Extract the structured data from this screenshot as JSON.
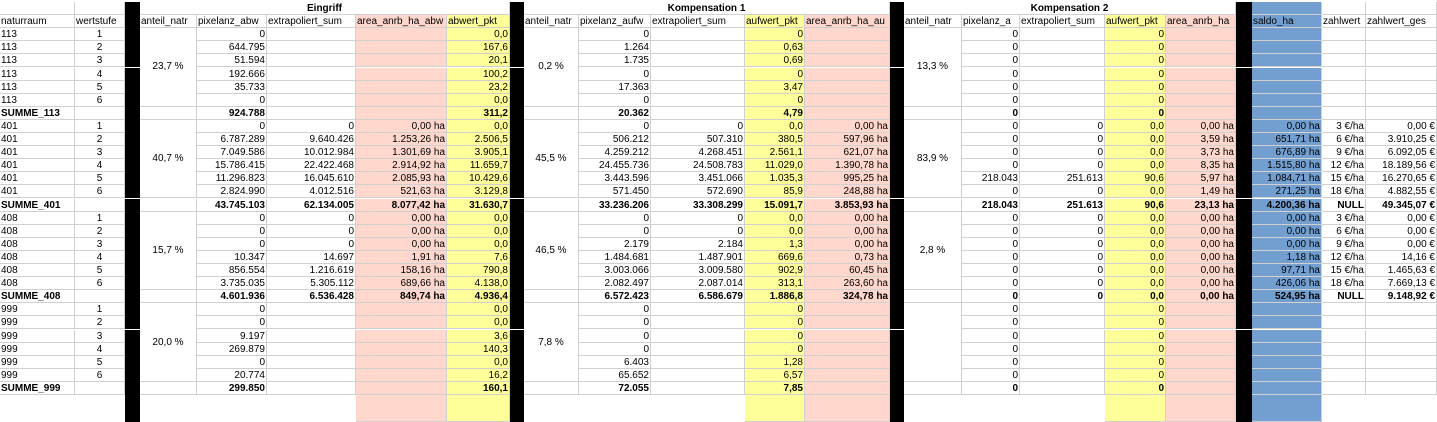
{
  "groups": [
    "Eingriff",
    "Kompensation 1",
    "Kompensation 2"
  ],
  "headers": [
    "naturraum",
    "wertstufe",
    "",
    "anteil_natr",
    "pixelanz_abw",
    "extrapoliert_sum",
    "area_anrb_ha_abw",
    "abwert_pkt",
    "",
    "anteil_natr",
    "pixelanz_aufw",
    "extrapoliert_sum",
    "aufwert_pkt",
    "area_anrb_ha_au",
    "",
    "anteil_natr",
    "pixelanz_a",
    "extrapoliert_sum",
    "aufwert_pkt",
    "area_anrb_ha",
    "",
    "saldo_ha",
    "zahlwert",
    "zahlwert_ges"
  ],
  "blocks": [
    {
      "anteil": [
        "23,7 %",
        "0,2 %",
        "13,3 %"
      ],
      "rows": [
        [
          "113",
          "1",
          "",
          "",
          "0",
          "",
          "",
          "0,0",
          "",
          "",
          "0",
          "",
          "0",
          "",
          "",
          "",
          "0",
          "",
          "0",
          "",
          "",
          "",
          "",
          ""
        ],
        [
          "113",
          "2",
          "",
          "",
          "644.795",
          "",
          "",
          "167,6",
          "",
          "",
          "1.264",
          "",
          "0,63",
          "",
          "",
          "",
          "0",
          "",
          "0",
          "",
          "",
          "",
          "",
          ""
        ],
        [
          "113",
          "3",
          "",
          "",
          "51.594",
          "",
          "",
          "20,1",
          "",
          "",
          "1.735",
          "",
          "0,69",
          "",
          "",
          "",
          "0",
          "",
          "0",
          "",
          "",
          "",
          "",
          ""
        ],
        [
          "113",
          "4",
          "",
          "",
          "192.666",
          "",
          "",
          "100,2",
          "",
          "",
          "0",
          "",
          "0",
          "",
          "",
          "",
          "0",
          "",
          "0",
          "",
          "",
          "",
          "",
          ""
        ],
        [
          "113",
          "5",
          "",
          "",
          "35.733",
          "",
          "",
          "23,2",
          "",
          "",
          "17.363",
          "",
          "3,47",
          "",
          "",
          "",
          "0",
          "",
          "0",
          "",
          "",
          "",
          "",
          ""
        ],
        [
          "113",
          "6",
          "",
          "",
          "0",
          "",
          "",
          "0,0",
          "",
          "",
          "0",
          "",
          "0",
          "",
          "",
          "",
          "0",
          "",
          "0",
          "",
          "",
          "",
          "",
          ""
        ]
      ],
      "sum": [
        "SUMME_113",
        "",
        "",
        "",
        "924.788",
        "",
        "",
        "311,2",
        "",
        "",
        "20.362",
        "",
        "4,79",
        "",
        "",
        "",
        "0",
        "",
        "0",
        "",
        "",
        "",
        "",
        ""
      ]
    },
    {
      "anteil": [
        "40,7 %",
        "45,5 %",
        "83,9 %"
      ],
      "rows": [
        [
          "401",
          "1",
          "",
          "",
          "0",
          "0",
          "0,00 ha",
          "0,0",
          "",
          "",
          "0",
          "0",
          "0,0",
          "0,00 ha",
          "",
          "",
          "0",
          "0",
          "0,0",
          "0,00 ha",
          "",
          "0,00 ha",
          "3 €/ha",
          "0,00 €"
        ],
        [
          "401",
          "2",
          "",
          "",
          "6.787.289",
          "9.640.426",
          "1.253,26 ha",
          "2.506,5",
          "",
          "",
          "506.212",
          "507.310",
          "380,5",
          "597,96 ha",
          "",
          "",
          "0",
          "0",
          "0,0",
          "3,59 ha",
          "",
          "651,71 ha",
          "6 €/ha",
          "3.910,25 €"
        ],
        [
          "401",
          "3",
          "",
          "",
          "7.049.586",
          "10.012.984",
          "1.301,69 ha",
          "3.905,1",
          "",
          "",
          "4.259.212",
          "4.268.451",
          "2.561,1",
          "621,07 ha",
          "",
          "",
          "0",
          "0",
          "0,0",
          "3,73 ha",
          "",
          "676,89 ha",
          "9 €/ha",
          "6.092,05 €"
        ],
        [
          "401",
          "4",
          "",
          "",
          "15.786.415",
          "22.422.468",
          "2.914,92 ha",
          "11.659,7",
          "",
          "",
          "24.455.736",
          "24.508.783",
          "11.029,0",
          "1.390,78 ha",
          "",
          "",
          "0",
          "0",
          "0,0",
          "8,35 ha",
          "",
          "1.515,80 ha",
          "12 €/ha",
          "18.189,56 €"
        ],
        [
          "401",
          "5",
          "",
          "",
          "11.296.823",
          "16.045.610",
          "2.085,93 ha",
          "10.429,6",
          "",
          "",
          "3.443.596",
          "3.451.066",
          "1.035,3",
          "995,25 ha",
          "",
          "",
          "218.043",
          "251.613",
          "90,6",
          "5,97 ha",
          "",
          "1.084,71 ha",
          "15 €/ha",
          "16.270,65 €"
        ],
        [
          "401",
          "6",
          "",
          "",
          "2.824.990",
          "4.012.516",
          "521,63 ha",
          "3.129,8",
          "",
          "",
          "571.450",
          "572.690",
          "85,9",
          "248,88 ha",
          "",
          "",
          "0",
          "0",
          "0,0",
          "1,49 ha",
          "",
          "271,25 ha",
          "18 €/ha",
          "4.882,55 €"
        ]
      ],
      "sum": [
        "SUMME_401",
        "",
        "",
        "",
        "43.745.103",
        "62.134.005",
        "8.077,42 ha",
        "31.630,7",
        "",
        "",
        "33.236.206",
        "33.308.299",
        "15.091,7",
        "3.853,93 ha",
        "",
        "",
        "218.043",
        "251.613",
        "90,6",
        "23,13 ha",
        "",
        "4.200,36 ha",
        "NULL",
        "49.345,07 €"
      ]
    },
    {
      "anteil": [
        "15,7 %",
        "46,5 %",
        "2,8 %"
      ],
      "rows": [
        [
          "408",
          "1",
          "",
          "",
          "0",
          "0",
          "0,00 ha",
          "0,0",
          "",
          "",
          "0",
          "0",
          "0,0",
          "0,00 ha",
          "",
          "",
          "0",
          "0",
          "0,0",
          "0,00 ha",
          "",
          "0,00 ha",
          "3 €/ha",
          "0,00 €"
        ],
        [
          "408",
          "2",
          "",
          "",
          "0",
          "0",
          "0,00 ha",
          "0,0",
          "",
          "",
          "0",
          "0",
          "0,0",
          "0,00 ha",
          "",
          "",
          "0",
          "0",
          "0,0",
          "0,00 ha",
          "",
          "0,00 ha",
          "6 €/ha",
          "0,00 €"
        ],
        [
          "408",
          "3",
          "",
          "",
          "0",
          "0",
          "0,00 ha",
          "0,0",
          "",
          "",
          "2.179",
          "2.184",
          "1,3",
          "0,00 ha",
          "",
          "",
          "0",
          "0",
          "0,0",
          "0,00 ha",
          "",
          "0,00 ha",
          "9 €/ha",
          "0,00 €"
        ],
        [
          "408",
          "4",
          "",
          "",
          "10.347",
          "14.697",
          "1,91 ha",
          "7,6",
          "",
          "",
          "1.484.681",
          "1.487.901",
          "669,6",
          "0,73 ha",
          "",
          "",
          "0",
          "0",
          "0,0",
          "0,00 ha",
          "",
          "1,18 ha",
          "12 €/ha",
          "14,16 €"
        ],
        [
          "408",
          "5",
          "",
          "",
          "856.554",
          "1.216.619",
          "158,16 ha",
          "790,8",
          "",
          "",
          "3.003.066",
          "3.009.580",
          "902,9",
          "60,45 ha",
          "",
          "",
          "0",
          "0",
          "0,0",
          "0,00 ha",
          "",
          "97,71 ha",
          "15 €/ha",
          "1.465,63 €"
        ],
        [
          "408",
          "6",
          "",
          "",
          "3.735.035",
          "5.305.112",
          "689,66 ha",
          "4.138,0",
          "",
          "",
          "2.082.497",
          "2.087.014",
          "313,1",
          "263,60 ha",
          "",
          "",
          "0",
          "0",
          "0,0",
          "0,00 ha",
          "",
          "426,06 ha",
          "18 €/ha",
          "7.669,13 €"
        ]
      ],
      "sum": [
        "SUMME_408",
        "",
        "",
        "",
        "4.601.936",
        "6.536.428",
        "849,74 ha",
        "4.936,4",
        "",
        "",
        "6.572.423",
        "6.586.679",
        "1.886,8",
        "324,78 ha",
        "",
        "",
        "0",
        "0",
        "0,0",
        "0,00 ha",
        "",
        "524,95 ha",
        "NULL",
        "9.148,92 €"
      ]
    },
    {
      "anteil": [
        "20,0 %",
        "7,8 %",
        ""
      ],
      "rows": [
        [
          "999",
          "1",
          "",
          "",
          "0",
          "",
          "",
          "0,0",
          "",
          "",
          "0",
          "",
          "0",
          "",
          "",
          "",
          "0",
          "",
          "0",
          "",
          "",
          "",
          "",
          ""
        ],
        [
          "999",
          "2",
          "",
          "",
          "0",
          "",
          "",
          "0,0",
          "",
          "",
          "0",
          "",
          "0",
          "",
          "",
          "",
          "0",
          "",
          "0",
          "",
          "",
          "",
          "",
          ""
        ],
        [
          "999",
          "3",
          "",
          "",
          "9.197",
          "",
          "",
          "3,6",
          "",
          "",
          "0",
          "",
          "0",
          "",
          "",
          "",
          "0",
          "",
          "0",
          "",
          "",
          "",
          "",
          ""
        ],
        [
          "999",
          "4",
          "",
          "",
          "269.879",
          "",
          "",
          "140,3",
          "",
          "",
          "0",
          "",
          "0",
          "",
          "",
          "",
          "0",
          "",
          "0",
          "",
          "",
          "",
          "",
          ""
        ],
        [
          "999",
          "5",
          "",
          "",
          "0",
          "",
          "",
          "0,0",
          "",
          "",
          "6.403",
          "",
          "1,28",
          "",
          "",
          "",
          "0",
          "",
          "0",
          "",
          "",
          "",
          "",
          ""
        ],
        [
          "999",
          "6",
          "",
          "",
          "20.774",
          "",
          "",
          "16,2",
          "",
          "",
          "65.652",
          "",
          "6,57",
          "",
          "",
          "",
          "0",
          "",
          "0",
          "",
          "",
          "",
          "",
          ""
        ]
      ],
      "sum": [
        "SUMME_999",
        "",
        "",
        "",
        "299.850",
        "",
        "",
        "160,1",
        "",
        "",
        "72.055",
        "",
        "7,85",
        "",
        "",
        "",
        "0",
        "",
        "0",
        "",
        "",
        "",
        "",
        ""
      ]
    }
  ]
}
